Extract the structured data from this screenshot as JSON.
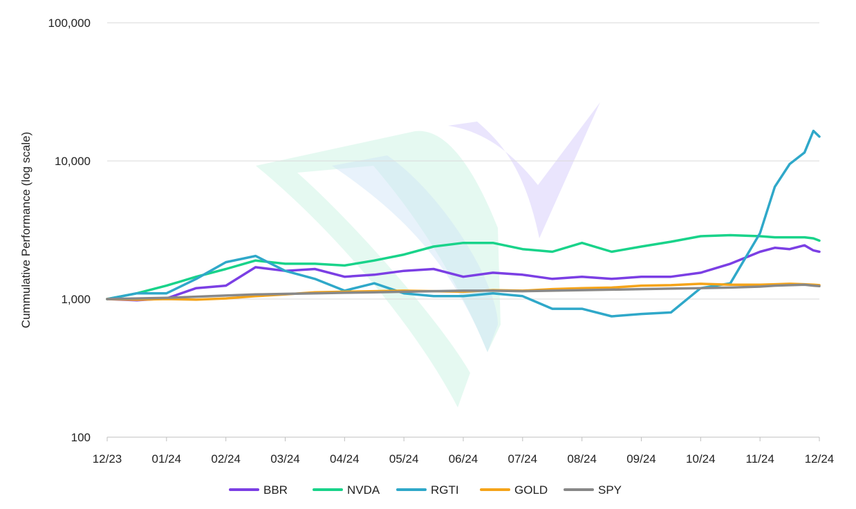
{
  "chart_data": {
    "type": "line",
    "title": "",
    "xlabel": "",
    "ylabel": "Cummulative Performance (log scale)",
    "y_scale": "log",
    "ylim": [
      100,
      100000
    ],
    "y_ticks": [
      100,
      1000,
      10000,
      100000
    ],
    "y_tick_labels": [
      "100",
      "1,000",
      "10,000",
      "100,000"
    ],
    "x_ticks": [
      0,
      1,
      2,
      3,
      4,
      5,
      6,
      7,
      8,
      9,
      10,
      11,
      12
    ],
    "x_tick_labels": [
      "12/23",
      "01/24",
      "02/24",
      "03/24",
      "04/24",
      "05/24",
      "06/24",
      "07/24",
      "08/24",
      "09/24",
      "10/24",
      "11/24",
      "12/24"
    ],
    "xlim": [
      0,
      12
    ],
    "grid": "horizontal",
    "legend": "bottom",
    "watermark": "logo-watermark",
    "x": [
      0,
      0.5,
      1,
      1.5,
      2,
      2.5,
      3,
      3.5,
      4,
      4.5,
      5,
      5.5,
      6,
      6.5,
      7,
      7.5,
      8,
      8.5,
      9,
      9.5,
      10,
      10.5,
      11,
      11.25,
      11.5,
      11.75,
      11.9,
      12
    ],
    "series": [
      {
        "name": "BBR",
        "color": "#7b3fe4",
        "values": [
          1000,
          980,
          1010,
          1200,
          1250,
          1700,
          1600,
          1650,
          1450,
          1500,
          1600,
          1650,
          1450,
          1550,
          1500,
          1400,
          1450,
          1400,
          1450,
          1450,
          1550,
          1800,
          2200,
          2350,
          2300,
          2450,
          2250,
          2200
        ]
      },
      {
        "name": "NVDA",
        "color": "#19d38a",
        "values": [
          1000,
          1100,
          1250,
          1450,
          1650,
          1900,
          1800,
          1800,
          1750,
          1900,
          2100,
          2400,
          2550,
          2550,
          2300,
          2200,
          2550,
          2200,
          2400,
          2600,
          2850,
          2900,
          2850,
          2800,
          2800,
          2800,
          2750,
          2650
        ]
      },
      {
        "name": "RGTI",
        "color": "#2fa8c9",
        "values": [
          1000,
          1100,
          1100,
          1400,
          1850,
          2050,
          1600,
          1400,
          1150,
          1300,
          1100,
          1050,
          1050,
          1100,
          1050,
          850,
          850,
          750,
          780,
          800,
          1200,
          1300,
          3000,
          6500,
          9500,
          11500,
          16500,
          15000
        ]
      },
      {
        "name": "GOLD",
        "color": "#f5a41a",
        "values": [
          1000,
          990,
          1000,
          990,
          1010,
          1050,
          1080,
          1120,
          1130,
          1140,
          1150,
          1140,
          1130,
          1160,
          1150,
          1180,
          1200,
          1210,
          1250,
          1260,
          1290,
          1270,
          1270,
          1280,
          1290,
          1280,
          1270,
          1260
        ]
      },
      {
        "name": "SPY",
        "color": "#888888",
        "values": [
          1000,
          1010,
          1020,
          1040,
          1060,
          1080,
          1090,
          1100,
          1110,
          1120,
          1130,
          1140,
          1150,
          1150,
          1140,
          1150,
          1160,
          1170,
          1180,
          1190,
          1200,
          1210,
          1230,
          1250,
          1260,
          1270,
          1250,
          1240
        ]
      }
    ]
  }
}
